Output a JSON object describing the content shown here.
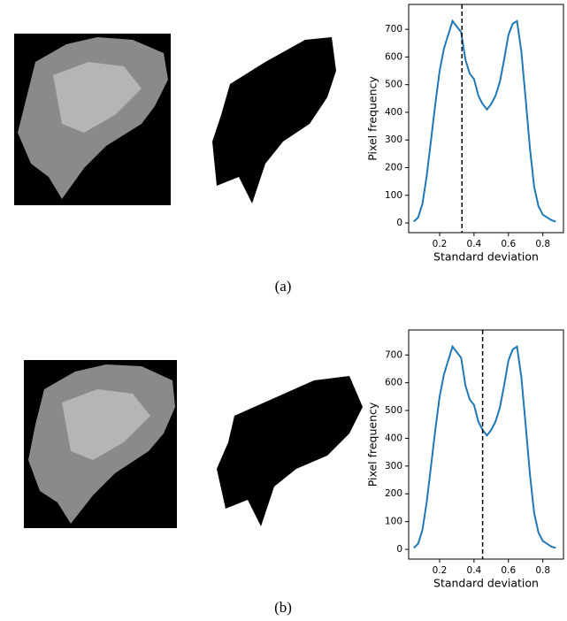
{
  "chart_data": [
    {
      "type": "line",
      "color": "#1f77b4",
      "xlabel": "Standard deviation",
      "ylabel": "Pixel frequency",
      "x": [
        0.05,
        0.075,
        0.1,
        0.125,
        0.15,
        0.175,
        0.2,
        0.225,
        0.25,
        0.275,
        0.3,
        0.325,
        0.35,
        0.375,
        0.4,
        0.425,
        0.45,
        0.475,
        0.5,
        0.525,
        0.55,
        0.575,
        0.6,
        0.625,
        0.65,
        0.675,
        0.7,
        0.725,
        0.75,
        0.775,
        0.8,
        0.825,
        0.85,
        0.875
      ],
      "values": [
        5,
        20,
        70,
        170,
        300,
        430,
        550,
        630,
        680,
        730,
        710,
        690,
        590,
        540,
        520,
        460,
        430,
        410,
        430,
        460,
        510,
        590,
        680,
        720,
        730,
        620,
        450,
        270,
        130,
        60,
        30,
        20,
        10,
        5
      ],
      "threshold": 0.33,
      "xlim": [
        0.02,
        0.92
      ],
      "ylim": [
        -35,
        790
      ],
      "xticks": [
        0.2,
        0.4,
        0.6,
        0.8
      ],
      "yticks": [
        0,
        100,
        200,
        300,
        400,
        500,
        600,
        700
      ]
    },
    {
      "type": "line",
      "color": "#1f77b4",
      "xlabel": "Standard deviation",
      "ylabel": "Pixel frequency",
      "x": [
        0.05,
        0.075,
        0.1,
        0.125,
        0.15,
        0.175,
        0.2,
        0.225,
        0.25,
        0.275,
        0.3,
        0.325,
        0.35,
        0.375,
        0.4,
        0.425,
        0.45,
        0.475,
        0.5,
        0.525,
        0.55,
        0.575,
        0.6,
        0.625,
        0.65,
        0.675,
        0.7,
        0.725,
        0.75,
        0.775,
        0.8,
        0.825,
        0.85,
        0.875
      ],
      "values": [
        5,
        20,
        70,
        170,
        300,
        430,
        550,
        630,
        680,
        730,
        710,
        690,
        590,
        540,
        520,
        460,
        430,
        410,
        430,
        460,
        510,
        590,
        680,
        720,
        730,
        620,
        450,
        270,
        130,
        60,
        30,
        20,
        10,
        5
      ],
      "threshold": 0.45,
      "xlim": [
        0.02,
        0.92
      ],
      "ylim": [
        -35,
        790
      ],
      "xticks": [
        0.2,
        0.4,
        0.6,
        0.8
      ],
      "yticks": [
        0,
        100,
        200,
        300,
        400,
        500,
        600,
        700
      ]
    }
  ],
  "captions": [
    "(a)",
    "(b)"
  ]
}
